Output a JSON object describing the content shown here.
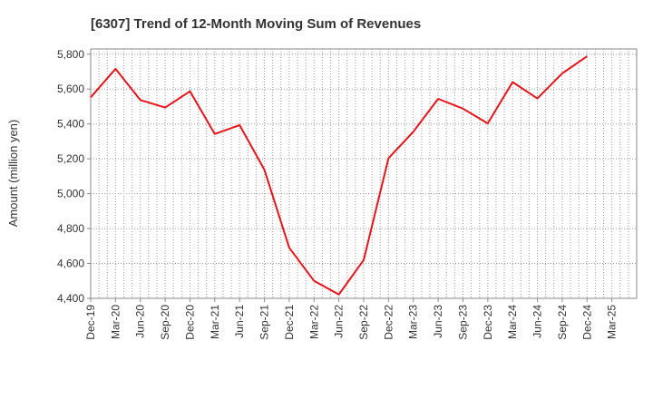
{
  "chart_data": {
    "type": "line",
    "title": "[6307]  Trend of 12-Month Moving Sum of Revenues",
    "xlabel": "",
    "ylabel": "Amount (million yen)",
    "ylim": [
      4400,
      5830
    ],
    "yticks": [
      4400,
      4600,
      4800,
      5000,
      5200,
      5400,
      5600,
      5800
    ],
    "ytick_labels": [
      "4,400",
      "4,600",
      "4,800",
      "5,000",
      "5,200",
      "5,400",
      "5,600",
      "5,800"
    ],
    "categories": [
      "Dec-19",
      "Mar-20",
      "Jun-20",
      "Sep-20",
      "Dec-20",
      "Mar-21",
      "Jun-21",
      "Sep-21",
      "Dec-21",
      "Mar-22",
      "Jun-22",
      "Sep-22",
      "Dec-22",
      "Mar-23",
      "Jun-23",
      "Sep-23",
      "Dec-23",
      "Mar-24",
      "Jun-24",
      "Sep-24",
      "Dec-24",
      "Mar-25"
    ],
    "series": [
      {
        "name": "",
        "color": "#e8141b",
        "values": [
          5553,
          5716,
          5537,
          5494,
          5587,
          5343,
          5393,
          5138,
          4690,
          4500,
          4422,
          4620,
          5204,
          5355,
          5544,
          5488,
          5403,
          5640,
          5546,
          5690,
          5788,
          null
        ]
      }
    ],
    "grid": true,
    "legend": "none"
  }
}
